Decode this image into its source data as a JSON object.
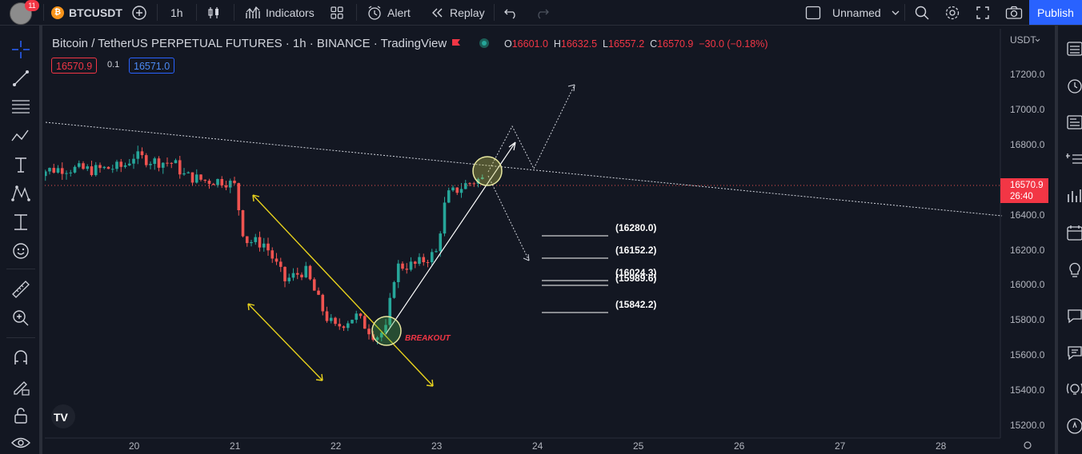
{
  "topbar": {
    "avatar_badge": "11",
    "symbol": "BTCUSDT",
    "interval": "1h",
    "indicators": "Indicators",
    "alert": "Alert",
    "replay": "Replay",
    "layout_name": "Unnamed",
    "publish": "Publish"
  },
  "legend": {
    "title": "Bitcoin / TetherUS PERPETUAL FUTURES · 1h · BINANCE · TradingView",
    "o_label": "O",
    "o_value": "16601.0",
    "h_label": "H",
    "h_value": "16632.5",
    "l_label": "L",
    "l_value": "16557.2",
    "c_label": "C",
    "c_value": "16570.9",
    "change": "−30.0 (−0.18%)",
    "sell_price": "16570.9",
    "spread": "0.1",
    "buy_price": "16571.0"
  },
  "price_scale": {
    "currency": "USDT",
    "current_price": "16570.9",
    "countdown": "26:40",
    "ticks": [
      "17200.0",
      "17000.0",
      "16800.0",
      "16400.0",
      "16200.0",
      "16000.0",
      "15800.0",
      "15600.0",
      "15400.0",
      "15200.0"
    ]
  },
  "time_scale": {
    "ticks": [
      "20",
      "21",
      "22",
      "23",
      "24",
      "25",
      "26",
      "27",
      "28"
    ]
  },
  "annotations": {
    "breakout": "BREAKOUT",
    "levels": [
      "(16280.0)",
      "(16152.2)",
      "(16024.3)",
      "(15989.6)",
      "(15842.2)"
    ]
  },
  "colors": {
    "up": "#26a69a",
    "down": "#ef5350",
    "accent": "#2962ff",
    "channel": "#e8d21d"
  },
  "chart_data": {
    "type": "candlestick",
    "symbol": "BTCUSDT.P",
    "x_ticks": [
      "20",
      "21",
      "22",
      "23",
      "24",
      "25",
      "26",
      "27",
      "28"
    ],
    "ylim": [
      15150,
      17300
    ],
    "close_path": [
      [
        19.0,
        16640
      ],
      [
        19.3,
        16660
      ],
      [
        19.6,
        16650
      ],
      [
        19.9,
        16670
      ],
      [
        20.0,
        16730
      ],
      [
        20.2,
        16700
      ],
      [
        20.4,
        16690
      ],
      [
        20.5,
        16620
      ],
      [
        20.7,
        16590
      ],
      [
        20.9,
        16590
      ],
      [
        21.0,
        16560
      ],
      [
        21.1,
        16250
      ],
      [
        21.3,
        16230
      ],
      [
        21.5,
        16020
      ],
      [
        21.7,
        16080
      ],
      [
        21.9,
        15820
      ],
      [
        22.0,
        15750
      ],
      [
        22.2,
        15820
      ],
      [
        22.4,
        15700
      ],
      [
        22.5,
        15740
      ],
      [
        22.6,
        16100
      ],
      [
        22.8,
        16110
      ],
      [
        23.0,
        16180
      ],
      [
        23.1,
        16500
      ],
      [
        23.3,
        16570
      ],
      [
        23.45,
        16601
      ],
      [
        23.5,
        16571
      ]
    ],
    "trendline_start": [
      19.0,
      16935
    ],
    "trendline_end": [
      28.6,
      16390
    ],
    "breakout_at": [
      22.45,
      15720
    ],
    "projection_target": [
      24.4,
      17150
    ]
  }
}
